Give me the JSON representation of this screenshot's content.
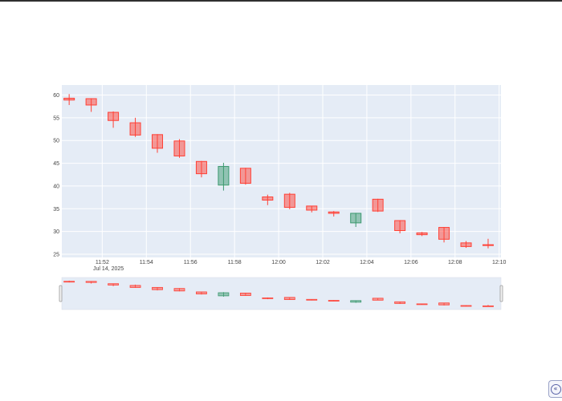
{
  "chart_data": {
    "type": "candlestick",
    "title": "",
    "xlabel": "",
    "ylabel": "",
    "x_date_label": "Jul 14, 2025",
    "ylim": [
      24.3,
      62.2
    ],
    "xlim": [
      "11:50:10",
      "12:10:05"
    ],
    "y_ticks": [
      25,
      30,
      35,
      40,
      45,
      50,
      55,
      60
    ],
    "x_ticks": [
      "11:52",
      "11:54",
      "11:56",
      "11:58",
      "12:00",
      "12:02",
      "12:04",
      "12:06",
      "12:08",
      "12:10"
    ],
    "grid": true,
    "legend": "none",
    "rangeslider": true,
    "colors": {
      "increasing": "#3d9970",
      "decreasing": "#ff4136",
      "plot_bg": "#e5ecf6",
      "grid": "#ffffff"
    },
    "candles": [
      {
        "time": "11:50:30",
        "open": 59.3,
        "high": 60.2,
        "low": 57.8,
        "close": 58.9
      },
      {
        "time": "11:51:30",
        "open": 59.2,
        "high": 59.3,
        "low": 56.3,
        "close": 57.8
      },
      {
        "time": "11:52:30",
        "open": 56.2,
        "high": 56.4,
        "low": 52.8,
        "close": 54.4
      },
      {
        "time": "11:53:30",
        "open": 53.9,
        "high": 55.0,
        "low": 50.8,
        "close": 51.2
      },
      {
        "time": "11:54:30",
        "open": 51.3,
        "high": 51.4,
        "low": 47.3,
        "close": 48.3
      },
      {
        "time": "11:55:30",
        "open": 49.9,
        "high": 50.3,
        "low": 46.2,
        "close": 46.6
      },
      {
        "time": "11:56:30",
        "open": 45.4,
        "high": 45.5,
        "low": 41.9,
        "close": 42.7
      },
      {
        "time": "11:57:30",
        "open": 40.2,
        "high": 45.1,
        "low": 39.0,
        "close": 44.3
      },
      {
        "time": "11:58:30",
        "open": 43.9,
        "high": 44.0,
        "low": 40.3,
        "close": 40.6
      },
      {
        "time": "11:59:30",
        "open": 37.6,
        "high": 38.1,
        "low": 35.8,
        "close": 36.9
      },
      {
        "time": "12:00:30",
        "open": 38.2,
        "high": 38.5,
        "low": 34.9,
        "close": 35.3
      },
      {
        "time": "12:01:30",
        "open": 35.6,
        "high": 35.6,
        "low": 34.2,
        "close": 34.7
      },
      {
        "time": "12:02:30",
        "open": 34.3,
        "high": 34.5,
        "low": 33.3,
        "close": 34.0
      },
      {
        "time": "12:03:30",
        "open": 31.9,
        "high": 34.1,
        "low": 31.0,
        "close": 34.0
      },
      {
        "time": "12:04:30",
        "open": 37.1,
        "high": 37.2,
        "low": 34.3,
        "close": 34.5
      },
      {
        "time": "12:05:30",
        "open": 32.4,
        "high": 32.5,
        "low": 29.6,
        "close": 30.2
      },
      {
        "time": "12:06:30",
        "open": 29.7,
        "high": 29.9,
        "low": 29.0,
        "close": 29.3
      },
      {
        "time": "12:07:30",
        "open": 30.9,
        "high": 31.0,
        "low": 27.6,
        "close": 28.3
      },
      {
        "time": "12:08:30",
        "open": 27.5,
        "high": 27.9,
        "low": 26.4,
        "close": 26.7
      },
      {
        "time": "12:09:30",
        "open": 27.1,
        "high": 28.4,
        "low": 26.3,
        "close": 27.0
      }
    ]
  },
  "ui": {
    "corner_button_glyph": "«",
    "corner_button_icon": "double-chevron-left-icon"
  }
}
